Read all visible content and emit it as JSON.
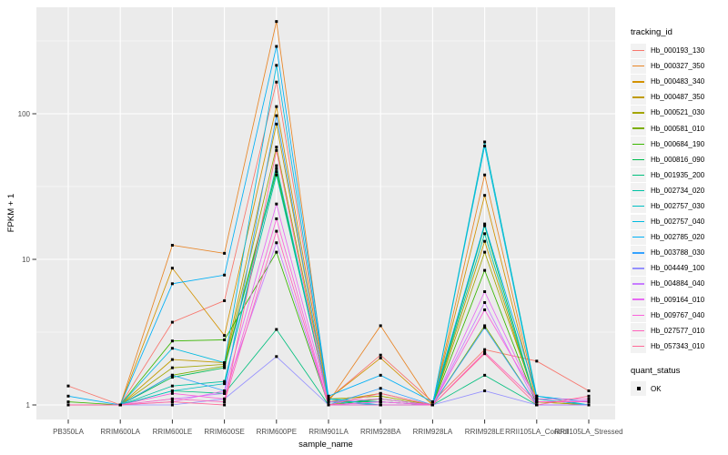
{
  "chart_data": {
    "type": "line",
    "xlabel": "sample_name",
    "ylabel": "FPKM + 1",
    "y_scale": "log10",
    "y_ticks": [
      1,
      10,
      100
    ],
    "y_minor_ticks": [
      3.1623,
      31.623,
      316.23
    ],
    "ylim": [
      0.8,
      550
    ],
    "grid": "on",
    "legend_position": "right",
    "categories": [
      "PB350LA",
      "RRIM600LA",
      "RRIM600LE",
      "RRIM600SE",
      "RRIM600PE",
      "RRIM901LA",
      "RRIM928BA",
      "RRIM928LA",
      "RRIM928LE",
      "RRII105LA_Control",
      "RRII105LA_Stressed"
    ],
    "point_marker": "black-square",
    "series": [
      {
        "name": "Hb_000193_130",
        "color": "#F8766D",
        "values": [
          1.35,
          1.0,
          3.7,
          5.2,
          165,
          1.1,
          2.2,
          1.05,
          2.4,
          2.0,
          1.25
        ]
      },
      {
        "name": "Hb_000327_350",
        "color": "#E88526",
        "values": [
          1.0,
          1.0,
          12.5,
          11.0,
          430,
          1.05,
          3.5,
          1.0,
          38,
          1.1,
          1.0
        ]
      },
      {
        "name": "Hb_000483_340",
        "color": "#D39200",
        "values": [
          1.0,
          1.0,
          8.7,
          3.0,
          112,
          1.1,
          2.1,
          1.0,
          27.5,
          1.05,
          1.0
        ]
      },
      {
        "name": "Hb_000487_350",
        "color": "#C09B00",
        "values": [
          1.0,
          1.0,
          2.05,
          1.95,
          85,
          1.05,
          1.2,
          1.0,
          13.3,
          1.0,
          1.0
        ]
      },
      {
        "name": "Hb_000521_030",
        "color": "#A3A500",
        "values": [
          1.0,
          1.0,
          1.8,
          1.9,
          59,
          1.1,
          1.15,
          1.0,
          11.2,
          1.05,
          1.0
        ]
      },
      {
        "name": "Hb_000581_010",
        "color": "#7CAE00",
        "values": [
          1.0,
          1.0,
          1.6,
          1.85,
          42,
          1.05,
          1.1,
          1.0,
          3.5,
          1.0,
          1.0
        ]
      },
      {
        "name": "Hb_000684_190",
        "color": "#39B600",
        "values": [
          1.05,
          1.0,
          2.75,
          2.8,
          11.2,
          1.0,
          1.1,
          1.0,
          8.4,
          1.0,
          1.0
        ]
      },
      {
        "name": "Hb_000816_090",
        "color": "#00BB4E",
        "values": [
          1.0,
          1.0,
          1.55,
          1.8,
          40,
          1.05,
          1.05,
          1.0,
          17.0,
          1.0,
          1.0
        ]
      },
      {
        "name": "Hb_001935_200",
        "color": "#00BF7D",
        "values": [
          1.0,
          1.0,
          1.25,
          1.2,
          3.3,
          1.0,
          1.0,
          1.0,
          1.6,
          1.0,
          1.0
        ]
      },
      {
        "name": "Hb_002734_020",
        "color": "#00C1A3",
        "values": [
          1.0,
          1.0,
          1.35,
          1.45,
          38,
          1.1,
          1.05,
          1.0,
          15.0,
          1.0,
          1.0
        ]
      },
      {
        "name": "Hb_002757_030",
        "color": "#00BFC4",
        "values": [
          1.0,
          1.0,
          1.25,
          1.4,
          44,
          1.05,
          1.0,
          1.0,
          64,
          1.15,
          1.0
        ]
      },
      {
        "name": "Hb_002757_040",
        "color": "#00BAE0",
        "values": [
          1.0,
          1.0,
          2.45,
          1.95,
          215,
          1.1,
          1.0,
          1.0,
          60,
          1.1,
          1.0
        ]
      },
      {
        "name": "Hb_002785_020",
        "color": "#00B0F6",
        "values": [
          1.15,
          1.0,
          6.8,
          7.8,
          290,
          1.15,
          1.6,
          1.05,
          17.5,
          1.15,
          1.05
        ]
      },
      {
        "name": "Hb_003788_030",
        "color": "#35A2FF",
        "values": [
          1.0,
          1.0,
          1.6,
          1.25,
          97,
          1.0,
          1.3,
          1.0,
          3.4,
          1.0,
          1.0
        ]
      },
      {
        "name": "Hb_004449_100",
        "color": "#9590FF",
        "values": [
          1.0,
          1.0,
          1.0,
          1.1,
          2.15,
          1.0,
          1.0,
          1.0,
          1.25,
          1.0,
          1.0
        ]
      },
      {
        "name": "Hb_004884_040",
        "color": "#C77CFF",
        "values": [
          1.0,
          1.0,
          1.1,
          1.2,
          13.0,
          1.0,
          1.05,
          1.0,
          5.05,
          1.0,
          1.0
        ]
      },
      {
        "name": "Hb_009164_010",
        "color": "#E76BF3",
        "values": [
          1.0,
          1.0,
          1.05,
          1.25,
          24,
          1.05,
          1.1,
          1.0,
          6.0,
          1.05,
          1.07
        ]
      },
      {
        "name": "Hb_009767_040",
        "color": "#FA62DB",
        "values": [
          1.0,
          1.0,
          1.2,
          1.1,
          19,
          1.0,
          1.05,
          1.0,
          4.5,
          1.1,
          1.1
        ]
      },
      {
        "name": "Hb_027577_010",
        "color": "#FF62BC",
        "values": [
          1.0,
          1.0,
          1.1,
          1.05,
          15.6,
          1.0,
          1.0,
          1.0,
          2.3,
          1.05,
          1.05
        ]
      },
      {
        "name": "Hb_057343_010",
        "color": "#FF6A98",
        "values": [
          1.0,
          1.0,
          1.05,
          1.0,
          56,
          1.0,
          1.2,
          1.0,
          2.25,
          1.0,
          1.15
        ]
      }
    ]
  },
  "legend": {
    "tracking_title": "tracking_id",
    "quant_title": "quant_status",
    "quant_items": [
      {
        "label": "OK",
        "marker": "black-square"
      }
    ]
  },
  "colors": {
    "background": "#FFFFFF",
    "panel_bg": "#EBEBEB",
    "grid": "#FFFFFF",
    "tick_text": "#4D4D4D",
    "axis_title_text": "#000000",
    "tick_mark": "#333333",
    "legend_key_bg": "#F2F2F2",
    "point": "#000000"
  }
}
